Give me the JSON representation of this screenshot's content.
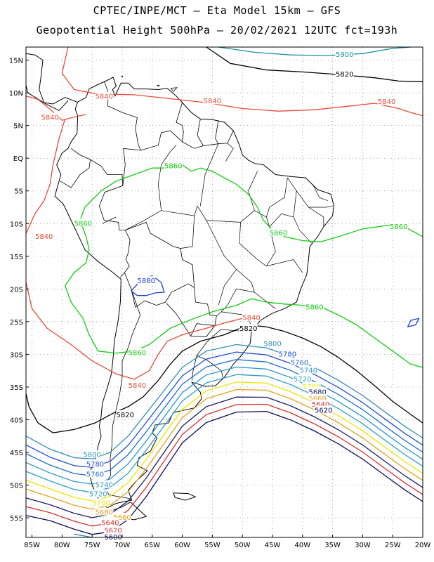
{
  "header": {
    "line1": "CPTEC/INPE/MCT –   Eta Model 15km – GFS",
    "line2": "Geopotential Height 500hPa – 20/02/2021 12UTC fct=193h"
  },
  "map": {
    "lon_range": [
      -86,
      -20
    ],
    "lat_range": [
      -58,
      17
    ],
    "lon_ticks": [
      "85W",
      "80W",
      "75W",
      "70W",
      "65W",
      "60W",
      "55W",
      "50W",
      "45W",
      "40W",
      "35W",
      "30W",
      "25W",
      "20W"
    ],
    "lat_ticks": [
      "15N",
      "10N",
      "5N",
      "EQ",
      "5S",
      "10S",
      "15S",
      "20S",
      "25S",
      "30S",
      "35S",
      "40S",
      "45S",
      "50S",
      "55S"
    ],
    "grid": true,
    "contour_colors": {
      "5900": "#1e90a0",
      "5880": "#1f3fd8",
      "5860": "#11cc11",
      "5840": "#e84a3a",
      "5820": "#000000",
      "5800": "#2f8fb5",
      "5780": "#1c4fd6",
      "5760": "#1d6fd0",
      "5740": "#2a9ad0",
      "5720": "#2aa0c8",
      "5700": "#e8e800",
      "5680": "#e8a020",
      "5660": "#1a1a6a",
      "5640": "#d83030",
      "5620": "#0b0b55"
    },
    "contour_labels": [
      {
        "text": "5900",
        "lon": -33.0,
        "lat": 15.8,
        "color_key": "5900"
      },
      {
        "text": "5820",
        "lon": -33.0,
        "lat": 12.8,
        "color_key": "5820"
      },
      {
        "text": "5840",
        "lon": -73.0,
        "lat": 9.4,
        "color_key": "5840"
      },
      {
        "text": "5840",
        "lon": -55.0,
        "lat": 8.7,
        "color_key": "5840"
      },
      {
        "text": "5840",
        "lon": -26.0,
        "lat": 8.6,
        "color_key": "5840"
      },
      {
        "text": "5840",
        "lon": -82.0,
        "lat": 6.2,
        "color_key": "5840"
      },
      {
        "text": "5860",
        "lon": -61.5,
        "lat": -1.2,
        "color_key": "5860"
      },
      {
        "text": "5860",
        "lon": -76.5,
        "lat": -10.0,
        "color_key": "5860"
      },
      {
        "text": "5860",
        "lon": -44.0,
        "lat": -11.5,
        "color_key": "5860"
      },
      {
        "text": "5860",
        "lon": -24.0,
        "lat": -10.5,
        "color_key": "5860"
      },
      {
        "text": "5840",
        "lon": -83.0,
        "lat": -12.0,
        "color_key": "5840"
      },
      {
        "text": "5880",
        "lon": -66.0,
        "lat": -18.8,
        "color_key": "5880"
      },
      {
        "text": "5860",
        "lon": -38.0,
        "lat": -22.8,
        "color_key": "5860"
      },
      {
        "text": "5840",
        "lon": -48.5,
        "lat": -24.4,
        "color_key": "5840"
      },
      {
        "text": "5820",
        "lon": -49.0,
        "lat": -26.1,
        "color_key": "5820"
      },
      {
        "text": "5860",
        "lon": -67.5,
        "lat": -29.8,
        "color_key": "5860"
      },
      {
        "text": "5800",
        "lon": -45.0,
        "lat": -28.4,
        "color_key": "5800"
      },
      {
        "text": "5780",
        "lon": -42.5,
        "lat": -30.0,
        "color_key": "5780"
      },
      {
        "text": "5760",
        "lon": -40.5,
        "lat": -31.3,
        "color_key": "5760"
      },
      {
        "text": "5740",
        "lon": -39.0,
        "lat": -32.5,
        "color_key": "5740"
      },
      {
        "text": "5720",
        "lon": -40.0,
        "lat": -33.8,
        "color_key": "5720"
      },
      {
        "text": "5700",
        "lon": -38.5,
        "lat": -35.0,
        "color_key": "5700"
      },
      {
        "text": "5680",
        "lon": -37.5,
        "lat": -35.8,
        "color_key": "5660"
      },
      {
        "text": "5660",
        "lon": -37.5,
        "lat": -36.8,
        "color_key": "5680"
      },
      {
        "text": "5640",
        "lon": -37.0,
        "lat": -37.7,
        "color_key": "5640"
      },
      {
        "text": "5620",
        "lon": -36.5,
        "lat": -38.6,
        "color_key": "5620"
      },
      {
        "text": "5840",
        "lon": -67.5,
        "lat": -34.8,
        "color_key": "5840"
      },
      {
        "text": "5820",
        "lon": -69.5,
        "lat": -39.3,
        "color_key": "5820"
      },
      {
        "text": "5800",
        "lon": -75.0,
        "lat": -45.4,
        "color_key": "5800"
      },
      {
        "text": "5780",
        "lon": -74.5,
        "lat": -46.8,
        "color_key": "5780"
      },
      {
        "text": "5760",
        "lon": -74.5,
        "lat": -48.4,
        "color_key": "5760"
      },
      {
        "text": "5740",
        "lon": -73.0,
        "lat": -50.0,
        "color_key": "5740"
      },
      {
        "text": "5720",
        "lon": -74.0,
        "lat": -51.4,
        "color_key": "5720"
      },
      {
        "text": "5700",
        "lon": -73.5,
        "lat": -52.8,
        "color_key": "5700"
      },
      {
        "text": "5680",
        "lon": -73.0,
        "lat": -54.2,
        "color_key": "5680"
      },
      {
        "text": "5660",
        "lon": -70.0,
        "lat": -55.0,
        "color_key": "5680"
      },
      {
        "text": "5640",
        "lon": -72.0,
        "lat": -55.8,
        "color_key": "5640"
      },
      {
        "text": "5620",
        "lon": -71.5,
        "lat": -57.0,
        "color_key": "5640"
      },
      {
        "text": "5600",
        "lon": -71.5,
        "lat": -58.0,
        "color_key": "5620"
      }
    ]
  }
}
